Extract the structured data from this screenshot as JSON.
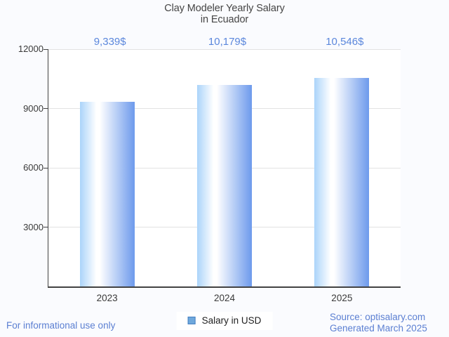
{
  "title": {
    "line1": "Clay Modeler Yearly Salary",
    "line2": "in Ecuador"
  },
  "chart_data": {
    "type": "bar",
    "title": "Clay Modeler Yearly Salary in Ecuador",
    "categories": [
      "2023",
      "2024",
      "2025"
    ],
    "series": [
      {
        "name": "Salary in USD",
        "values": [
          9339,
          10179,
          10546
        ]
      }
    ],
    "value_labels": [
      "9,339$",
      "10,179$",
      "10,546$"
    ],
    "xlabel": "",
    "ylabel": "",
    "ylim": [
      0,
      12000
    ],
    "yticks": [
      3000,
      6000,
      9000,
      12000
    ],
    "ytick_labels": [
      "3000",
      "6000",
      "9000",
      "12000"
    ],
    "grid": true,
    "legend_position": "bottom"
  },
  "legend": {
    "label": "Salary in USD"
  },
  "footer": {
    "left": "For informational use only",
    "source": "Source: optisalary.com",
    "generated": "Generated March 2025"
  },
  "colors": {
    "background": "#fafbfe",
    "plot_background": "#ffffff",
    "axis": "#424242",
    "gridline": "#e2e2e2",
    "title_text": "#454545",
    "tick_text": "#3a3a3a",
    "value_label": "#5b87dc",
    "footer_text": "#5b7fd2",
    "bar_left": "#abd4fa",
    "bar_mid": "#ffffff",
    "bar_right": "#6d9aec",
    "legend_fill": "#6fa8dc",
    "legend_border": "#4580c2",
    "legend_text": "#1f1f1f"
  }
}
